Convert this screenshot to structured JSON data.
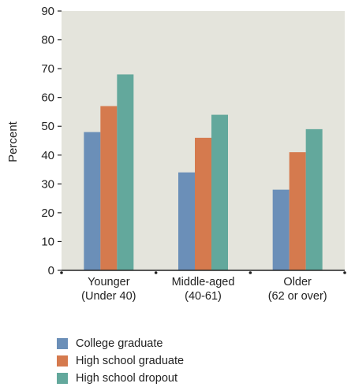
{
  "chart_data": {
    "type": "bar",
    "ylabel": "Percent",
    "ylim": [
      0,
      90
    ],
    "yticks": [
      0,
      10,
      20,
      30,
      40,
      50,
      60,
      70,
      80,
      90
    ],
    "categories": [
      [
        "Younger",
        "(Under 40)"
      ],
      [
        "Middle-aged",
        "(40-61)"
      ],
      [
        "Older",
        "(62 or over)"
      ]
    ],
    "series": [
      {
        "name": "College graduate",
        "color": "#6b8fb8",
        "values": [
          48,
          34,
          28
        ]
      },
      {
        "name": "High school graduate",
        "color": "#d57a4e",
        "values": [
          57,
          46,
          41
        ]
      },
      {
        "name": "High school dropout",
        "color": "#63a89c",
        "values": [
          68,
          54,
          49
        ]
      }
    ],
    "plot_background": "#e4e4dc",
    "grid": false,
    "legend_position": "bottom-left"
  }
}
